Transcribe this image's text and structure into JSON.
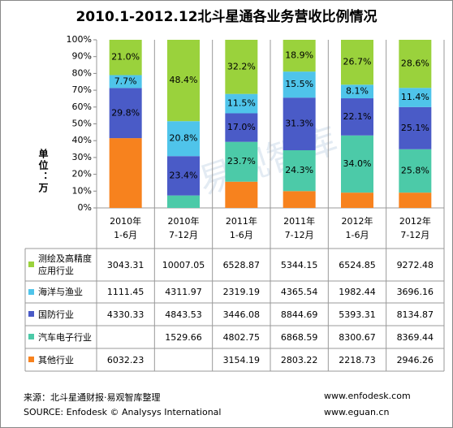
{
  "chart_data": {
    "type": "stacked_bar_100",
    "title": "2010.1-2012.12北斗星通各业务营收比例情况",
    "y_label": "单位：万",
    "categories": [
      [
        "2010年",
        "1-6月"
      ],
      [
        "2010年",
        "7-12月"
      ],
      [
        "2011年",
        "1-6月"
      ],
      [
        "2011年",
        "7-12月"
      ],
      [
        "2012年",
        "1-6月"
      ],
      [
        "2012年",
        "7-12月"
      ]
    ],
    "ylim": [
      0,
      100
    ],
    "yticks": [
      {
        "value": 0,
        "label": "0%"
      },
      {
        "value": 10,
        "label": "10%"
      },
      {
        "value": 20,
        "label": "20%"
      },
      {
        "value": 30,
        "label": "30%"
      },
      {
        "value": 40,
        "label": "40%"
      },
      {
        "value": 50,
        "label": "50%"
      },
      {
        "value": 60,
        "label": "60%"
      },
      {
        "value": 70,
        "label": "70%"
      },
      {
        "value": 80,
        "label": "80%"
      },
      {
        "value": 90,
        "label": "90%"
      },
      {
        "value": 100,
        "label": "100%"
      }
    ],
    "series": [
      {
        "name": "其他行业",
        "color": "#f7821e",
        "values": [
          41.5,
          null,
          15.6,
          10.0,
          9.1,
          9.1
        ],
        "value_labels": [
          null,
          null,
          null,
          null,
          null,
          null
        ],
        "amounts": [
          "6032.23",
          null,
          "3154.19",
          "2803.22",
          "2218.73",
          "2946.26"
        ]
      },
      {
        "name": "汽车电子行业",
        "color": "#4ccaa8",
        "values": [
          null,
          7.4,
          23.7,
          24.3,
          34.0,
          25.8
        ],
        "value_labels": [
          null,
          null,
          "23.7%",
          "24.3%",
          "34.0%",
          "25.8%"
        ],
        "amounts": [
          null,
          "1529.66",
          "4802.75",
          "6868.59",
          "8300.67",
          "8369.44"
        ]
      },
      {
        "name": "国防行业",
        "color": "#4a5bc7",
        "values": [
          29.8,
          23.4,
          17.0,
          31.3,
          22.1,
          25.1
        ],
        "value_labels": [
          "29.8%",
          "23.4%",
          "17.0%",
          "31.3%",
          "22.1%",
          "25.1%"
        ],
        "amounts": [
          "4330.33",
          "4843.53",
          "3446.08",
          "8844.69",
          "5393.31",
          "8134.87"
        ]
      },
      {
        "name": "海洋与渔业",
        "color": "#4fc4ea",
        "values": [
          7.7,
          20.8,
          11.5,
          15.5,
          8.1,
          11.4
        ],
        "value_labels": [
          "7.7%",
          "20.8%",
          "11.5%",
          "15.5%",
          "8.1%",
          "11.4%"
        ],
        "amounts": [
          "1111.45",
          "4311.97",
          "2319.19",
          "4365.54",
          "1982.44",
          "3696.16"
        ]
      },
      {
        "name": "测绘及高精度应用行业",
        "color": "#9ad23c",
        "values": [
          21.0,
          48.4,
          32.2,
          18.9,
          26.7,
          28.6
        ],
        "value_labels": [
          "21.0%",
          "48.4%",
          "32.2%",
          "18.9%",
          "26.7%",
          "28.6%"
        ],
        "amounts": [
          "3043.31",
          "10007.05",
          "6528.87",
          "5344.15",
          "6524.85",
          "9272.48"
        ]
      }
    ],
    "watermark": "易观智库",
    "source": "来源：北斗星通财报·易观智库整理",
    "source_en": "SOURCE: Enfodesk © Analysys International",
    "url1": "www.enfodesk.com",
    "url2": "www.eguan.cn"
  }
}
